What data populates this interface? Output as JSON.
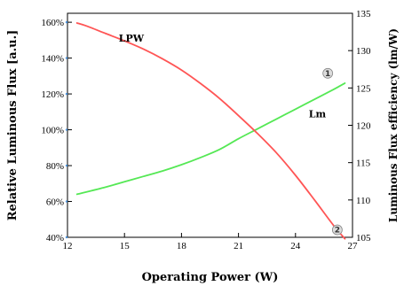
{
  "chart_data": {
    "type": "line",
    "xlabel": "Operating Power (W)",
    "ylabel_left": "Relative Luminous Flux [a.u.]",
    "ylabel_right": "Luminous Flux efficiency (lm/W)",
    "xlim": [
      12,
      27
    ],
    "x_ticks": [
      12,
      15,
      18,
      21,
      24,
      27
    ],
    "ylim_left": [
      40,
      165
    ],
    "y_ticks_left": [
      {
        "value": 40,
        "label": "40%"
      },
      {
        "value": 60,
        "label": "60%"
      },
      {
        "value": 80,
        "label": "80%"
      },
      {
        "value": 100,
        "label": "100%"
      },
      {
        "value": 120,
        "label": "120%"
      },
      {
        "value": 140,
        "label": "140%"
      },
      {
        "value": 160,
        "label": "160%"
      }
    ],
    "ylim_right": [
      105,
      135
    ],
    "y_ticks_right": [
      105,
      110,
      115,
      120,
      125,
      130,
      135
    ],
    "series": [
      {
        "name": "Lm",
        "axis": "left",
        "color": "#55e855",
        "marker": "①",
        "x": [
          12.5,
          14,
          15,
          16,
          17,
          18,
          19,
          20,
          21,
          22,
          23,
          24,
          25,
          26,
          26.6
        ],
        "y": [
          64,
          68,
          71,
          74,
          77,
          80.5,
          84.5,
          89,
          95,
          100.5,
          106,
          111.5,
          117,
          122.5,
          126
        ]
      },
      {
        "name": "LPW",
        "axis": "right",
        "color": "#ff5555",
        "marker": "②",
        "x": [
          12.5,
          13,
          14,
          15,
          16,
          17,
          18,
          19,
          20,
          21,
          22,
          23,
          24,
          25,
          26,
          26.6
        ],
        "y": [
          133.7,
          133.3,
          132.3,
          131.3,
          130.2,
          128.9,
          127.4,
          125.6,
          123.6,
          121.3,
          118.9,
          116.3,
          113.3,
          110.0,
          106.6,
          104.8
        ]
      }
    ],
    "grid": false
  }
}
